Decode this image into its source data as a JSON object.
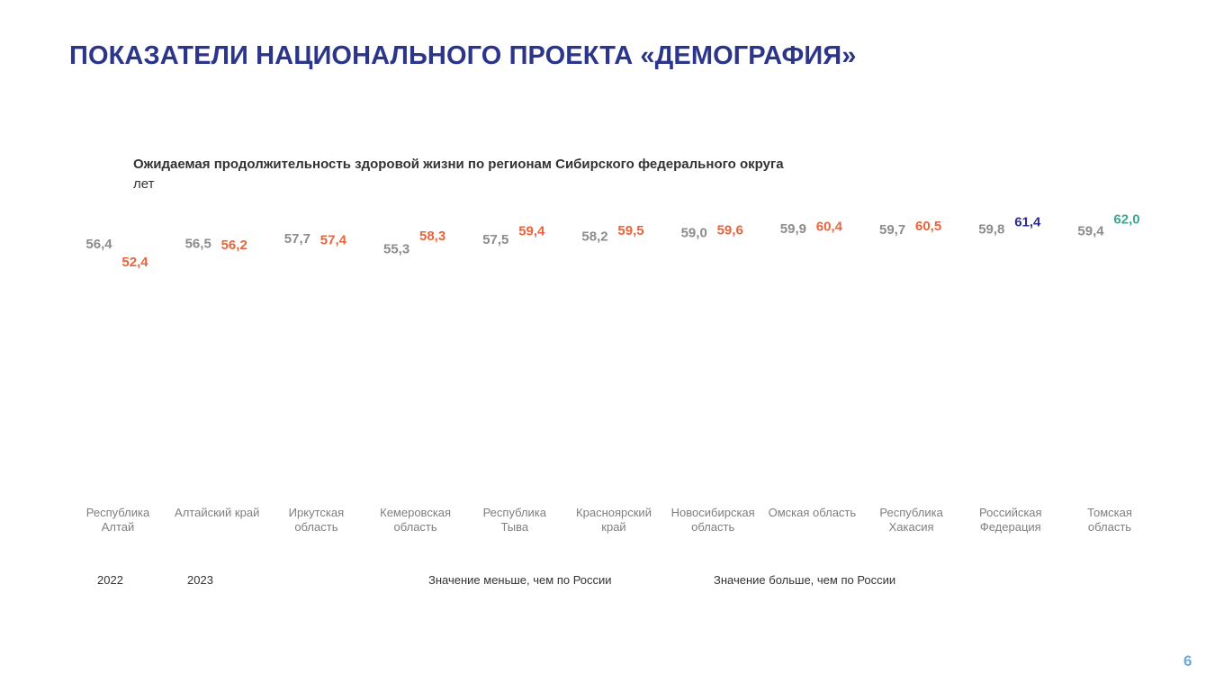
{
  "header": {
    "title": "ПОКАЗАТЕЛИ НАЦИОНАЛЬНОГО ПРОЕКТА «ДЕМОГРАФИЯ»"
  },
  "chart_data": {
    "type": "bar",
    "title": "Ожидаемая продолжительность здоровой жизни по регионам Сибирского федерального округа",
    "subtitle": "лет",
    "xlabel": "",
    "ylabel": "",
    "categories": [
      "Республика Алтай",
      "Алтайский край",
      "Иркутская область",
      "Кемеровская область",
      "Республика Тыва",
      "Красноярский край",
      "Новосибирская область",
      "Омская область",
      "Республика Хакасия",
      "Российская Федерация",
      "Томская область"
    ],
    "series": [
      {
        "name": "2022",
        "values": [
          56.4,
          56.5,
          57.7,
          55.3,
          57.5,
          58.2,
          59.0,
          59.9,
          59.7,
          59.8,
          59.4
        ],
        "labels": [
          "56,4",
          "56,5",
          "57,7",
          "55,3",
          "57,5",
          "58,2",
          "59,0",
          "59,9",
          "59,7",
          "59,8",
          "59,4"
        ],
        "color": "#8c8c8c"
      },
      {
        "name": "2023",
        "values": [
          52.4,
          56.2,
          57.4,
          58.3,
          59.4,
          59.5,
          59.6,
          60.4,
          60.5,
          61.4,
          62.0
        ],
        "labels": [
          "52,4",
          "56,2",
          "57,4",
          "58,3",
          "59,4",
          "59,5",
          "59,6",
          "60,4",
          "60,5",
          "61,4",
          "62,0"
        ],
        "colors": [
          "#e8643c",
          "#e8643c",
          "#e8643c",
          "#e8643c",
          "#e8643c",
          "#e8643c",
          "#e8643c",
          "#e8643c",
          "#e8643c",
          "#2b2d8f",
          "#3aa792"
        ]
      }
    ],
    "legend": {
      "placement": "bottom",
      "items": [
        "2022",
        "2023",
        "Значение меньше, чем по России",
        "Значение больше, чем по России"
      ]
    },
    "ylim": [
      52,
      62.5
    ],
    "grid": false
  },
  "footer": {
    "page_number": "6"
  },
  "colors": {
    "title": "#2b3589",
    "series_2022": "#8c8c8c",
    "below_russia": "#e8643c",
    "russia": "#2b2d8f",
    "above_russia": "#3aa792",
    "axis_label": "#7f7f7f"
  }
}
